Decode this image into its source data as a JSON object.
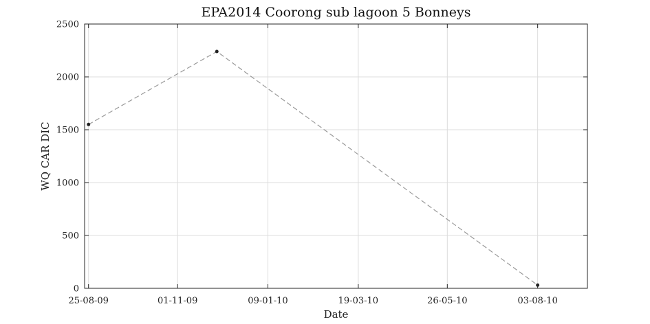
{
  "chart_data": {
    "type": "line",
    "title": "EPA2014 Coorong sub lagoon 5 Bonneys",
    "xlabel": "Date",
    "ylabel": "WQ CAR DIC",
    "x_type": "date",
    "xlim": [
      "2009-08-22",
      "2010-09-10"
    ],
    "ylim": [
      0,
      2500
    ],
    "x_ticks": [
      {
        "date": "2009-08-25",
        "label": "25-08-09"
      },
      {
        "date": "2009-11-01",
        "label": "01-11-09"
      },
      {
        "date": "2010-01-09",
        "label": "09-01-10"
      },
      {
        "date": "2010-03-19",
        "label": "19-03-10"
      },
      {
        "date": "2010-05-26",
        "label": "26-05-10"
      },
      {
        "date": "2010-08-03",
        "label": "03-08-10"
      }
    ],
    "y_ticks": [
      0,
      500,
      1000,
      1500,
      2000,
      2500
    ],
    "grid": true,
    "series": [
      {
        "line_style": "dashed",
        "line_color": "#9a9a9a",
        "marker_color": "#222222",
        "points": [
          {
            "x": "2009-08-25",
            "y": 1550
          },
          {
            "x": "2009-12-01",
            "y": 2240
          },
          {
            "x": "2010-08-03",
            "y": 30
          }
        ]
      }
    ]
  }
}
